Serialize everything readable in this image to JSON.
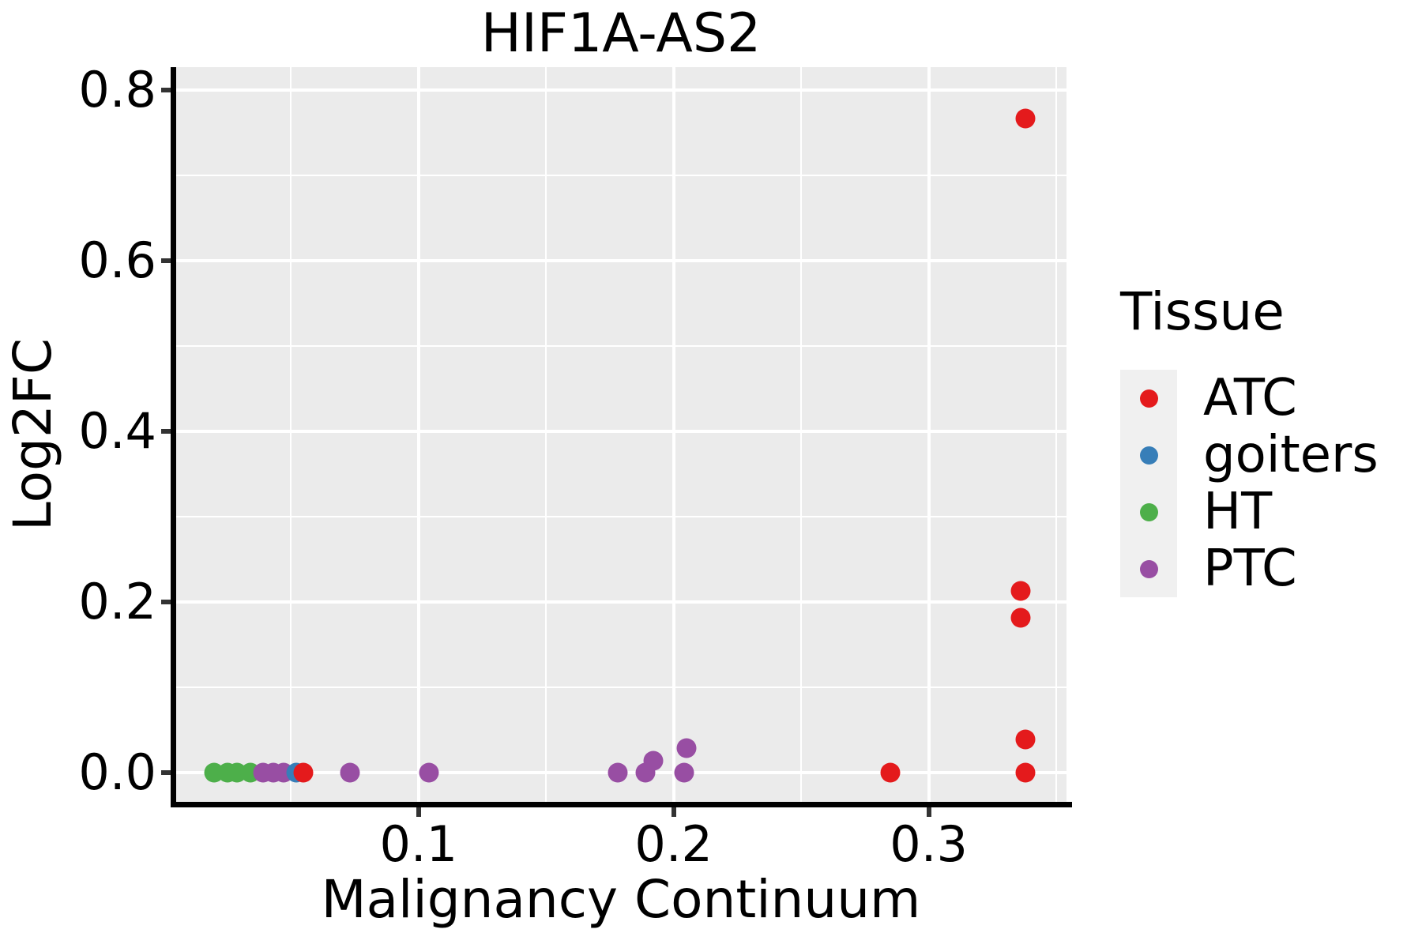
{
  "chart_data": {
    "type": "scatter",
    "title": "HIF1A-AS2",
    "xlabel": "Malignancy Continuum",
    "ylabel": "Log2FC",
    "xlim": [
      0.0047,
      0.354
    ],
    "ylim": [
      -0.034,
      0.827
    ],
    "grid": "major-and-minor, white on gray panel",
    "legend_position": "right",
    "x_ticks": {
      "values": [
        0.1,
        0.2,
        0.3
      ],
      "labels": [
        "0.1",
        "0.2",
        "0.3"
      ],
      "minor": [
        0.05,
        0.15,
        0.25,
        0.35
      ]
    },
    "y_ticks": {
      "values": [
        0.0,
        0.2,
        0.4,
        0.6,
        0.8
      ],
      "labels": [
        "0.0",
        "0.2",
        "0.4",
        "0.6",
        "0.8"
      ],
      "minor": [
        0.1,
        0.3,
        0.5,
        0.7
      ]
    },
    "series": [
      {
        "name": "ATC",
        "color": "#E41A1C",
        "points": [
          [
            0.055,
            0.0
          ],
          [
            0.285,
            0.0
          ],
          [
            0.336,
            0.213
          ],
          [
            0.336,
            0.182
          ],
          [
            0.338,
            0.039
          ],
          [
            0.338,
            0.0
          ],
          [
            0.338,
            0.767
          ]
        ]
      },
      {
        "name": "goiters",
        "color": "#377EB8",
        "points": [
          [
            0.052,
            0.0
          ]
        ]
      },
      {
        "name": "HT",
        "color": "#4DAF4A",
        "points": [
          [
            0.02,
            0.0
          ],
          [
            0.025,
            0.0
          ],
          [
            0.029,
            0.0
          ],
          [
            0.034,
            0.0
          ]
        ]
      },
      {
        "name": "PTC",
        "color": "#984EA3",
        "points": [
          [
            0.039,
            0.0
          ],
          [
            0.043,
            0.0
          ],
          [
            0.047,
            0.0
          ],
          [
            0.073,
            0.0
          ],
          [
            0.104,
            0.0
          ],
          [
            0.178,
            0.0
          ],
          [
            0.189,
            0.0
          ],
          [
            0.192,
            0.014
          ],
          [
            0.204,
            0.0
          ],
          [
            0.205,
            0.029
          ]
        ]
      }
    ]
  },
  "legend": {
    "title": "Tissue",
    "entries": [
      {
        "label": "ATC",
        "color": "#E41A1C"
      },
      {
        "label": "goiters",
        "color": "#377EB8"
      },
      {
        "label": "HT",
        "color": "#4DAF4A"
      },
      {
        "label": "PTC",
        "color": "#984EA3"
      }
    ]
  },
  "style": {
    "panel_bg": "#EBEBEB",
    "grid_color": "#FFFFFF",
    "axis_color": "#000000",
    "tick_color": "#333333",
    "legend_key_bg": "#F0F0F0"
  }
}
